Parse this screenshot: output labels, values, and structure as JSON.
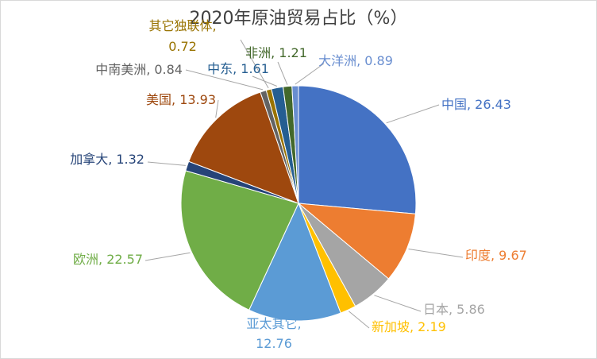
{
  "chart_data": {
    "type": "pie",
    "title": "2020年原油贸易占比（%）",
    "slices": [
      {
        "name": "中国",
        "value": 26.43,
        "value_label": "26.43",
        "color": "#4472c4"
      },
      {
        "name": "印度",
        "value": 9.67,
        "value_label": "9.67",
        "color": "#ed7d31"
      },
      {
        "name": "日本",
        "value": 5.86,
        "value_label": "5.86",
        "color": "#a5a5a5"
      },
      {
        "name": "新加坡",
        "value": 2.19,
        "value_label": "2.19",
        "color": "#ffc000"
      },
      {
        "name": "亚太其它",
        "value": 12.76,
        "value_label": "12.76",
        "color": "#5b9bd5"
      },
      {
        "name": "欧洲",
        "value": 22.57,
        "value_label": "22.57",
        "color": "#70ad47"
      },
      {
        "name": "加拿大",
        "value": 1.32,
        "value_label": "1.32",
        "color": "#264478"
      },
      {
        "name": "美国",
        "value": 13.93,
        "value_label": "13.93",
        "color": "#9e480e"
      },
      {
        "name": "中南美洲",
        "value": 0.84,
        "value_label": "0.84",
        "color": "#636363"
      },
      {
        "name": "其它独联体",
        "value": 0.72,
        "value_label": "0.72",
        "color": "#997300"
      },
      {
        "name": "中东",
        "value": 1.61,
        "value_label": "1.61",
        "color": "#255e91"
      },
      {
        "name": "非洲",
        "value": 1.21,
        "value_label": "1.21",
        "color": "#43682b"
      },
      {
        "name": "大洋洲",
        "value": 0.89,
        "value_label": "0.89",
        "color": "#698ed0"
      }
    ],
    "legend": "none"
  }
}
